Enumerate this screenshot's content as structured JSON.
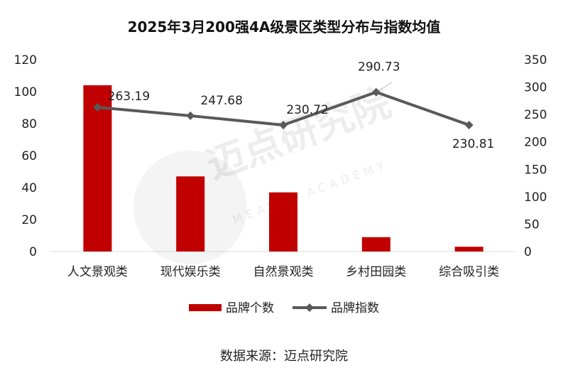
{
  "title": "2025年3月200强4A级景区类型分布与指数均值",
  "source": "数据来源：迈点研究院",
  "watermark": {
    "name": "迈点研究院",
    "sub": "MEADIN ACADEMY"
  },
  "colors": {
    "bar": "#c00000",
    "line": "#595959",
    "axis": "#d9d9d9",
    "text": "#222222"
  },
  "chart_data": {
    "type": "bar+line",
    "categories": [
      "人文景观类",
      "现代娱乐类",
      "自然景观类",
      "乡村田园类",
      "综合吸引类"
    ],
    "series": [
      {
        "name": "品牌个数",
        "type": "bar",
        "axis": "left",
        "values": [
          104,
          47,
          37,
          9,
          3
        ]
      },
      {
        "name": "品牌指数",
        "type": "line",
        "axis": "right",
        "values": [
          263.19,
          247.68,
          230.72,
          290.73,
          230.81
        ],
        "labels": [
          "263.19",
          "247.68",
          "230.72",
          "290.73",
          "230.81"
        ]
      }
    ],
    "y_left": {
      "min": 0,
      "max": 120,
      "ticks": [
        "0",
        "20",
        "40",
        "60",
        "80",
        "100",
        "120"
      ]
    },
    "y_right": {
      "min": 0,
      "max": 350,
      "ticks": [
        "0",
        "50",
        "100",
        "150",
        "200",
        "250",
        "300",
        "350"
      ]
    },
    "legend": {
      "position": "bottom",
      "items": [
        "品牌个数",
        "品牌指数"
      ]
    },
    "grid": false
  }
}
